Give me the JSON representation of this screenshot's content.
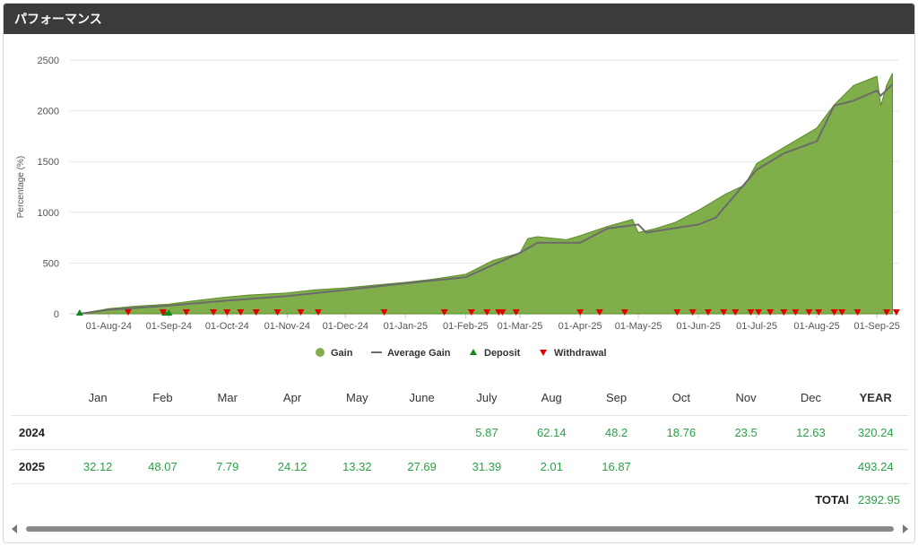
{
  "header": {
    "title": "パフォーマンス"
  },
  "chart_data": {
    "type": "area",
    "ylabel": "Percentage (%)",
    "ylim": [
      0,
      2500
    ],
    "yticks": [
      0,
      500,
      1000,
      1500,
      2000,
      2500
    ],
    "xlim": [
      "2024-07-12",
      "2025-09-12"
    ],
    "xticks": [
      "01-Aug-24",
      "01-Sep-24",
      "01-Oct-24",
      "01-Nov-24",
      "01-Dec-24",
      "01-Jan-25",
      "01-Feb-25",
      "01-Mar-25",
      "01-Apr-25",
      "01-May-25",
      "01-Jun-25",
      "01-Jul-25",
      "01-Aug-25",
      "01-Sep-25"
    ],
    "legend_position": "bottom-center",
    "grid": true,
    "colors": {
      "gain": "#7fae4b",
      "gain_line": "#5d8a2a",
      "average": "#6b6b6b",
      "deposit": "#12891a",
      "withdrawal": "#e10000"
    },
    "series": [
      {
        "name": "Gain",
        "x": [
          "2024-07-17",
          "2024-08-01",
          "2024-08-15",
          "2024-09-01",
          "2024-09-15",
          "2024-10-01",
          "2024-10-12",
          "2024-11-01",
          "2024-11-15",
          "2024-12-01",
          "2024-12-15",
          "2025-01-01",
          "2025-01-15",
          "2025-02-01",
          "2025-02-15",
          "2025-03-01",
          "2025-03-05",
          "2025-03-10",
          "2025-03-25",
          "2025-04-01",
          "2025-04-15",
          "2025-04-28",
          "2025-05-01",
          "2025-05-10",
          "2025-05-20",
          "2025-06-01",
          "2025-06-15",
          "2025-06-25",
          "2025-07-01",
          "2025-07-15",
          "2025-08-01",
          "2025-08-10",
          "2025-08-20",
          "2025-09-01",
          "2025-09-03",
          "2025-09-06",
          "2025-09-09"
        ],
        "values": [
          0,
          50,
          75,
          95,
          130,
          165,
          185,
          205,
          235,
          255,
          280,
          310,
          340,
          390,
          525,
          600,
          740,
          760,
          730,
          770,
          860,
          930,
          800,
          840,
          900,
          1020,
          1180,
          1270,
          1480,
          1640,
          1830,
          2060,
          2250,
          2340,
          2050,
          2250,
          2370
        ]
      },
      {
        "name": "Average Gain",
        "x": [
          "2024-07-17",
          "2024-08-01",
          "2024-09-01",
          "2024-10-01",
          "2024-11-01",
          "2024-12-01",
          "2025-01-01",
          "2025-02-01",
          "2025-03-01",
          "2025-03-10",
          "2025-04-01",
          "2025-04-15",
          "2025-05-01",
          "2025-05-05",
          "2025-06-01",
          "2025-06-10",
          "2025-07-01",
          "2025-07-15",
          "2025-08-01",
          "2025-08-10",
          "2025-08-20",
          "2025-09-01",
          "2025-09-03",
          "2025-09-09"
        ],
        "values": [
          0,
          40,
          80,
          130,
          175,
          235,
          300,
          360,
          600,
          700,
          700,
          840,
          880,
          800,
          880,
          950,
          1420,
          1580,
          1700,
          2050,
          2100,
          2200,
          2150,
          2260
        ]
      }
    ],
    "deposits": [
      "2024-07-17",
      "2024-08-30",
      "2024-09-01"
    ],
    "withdrawals": [
      "2024-08-11",
      "2024-08-29",
      "2024-09-10",
      "2024-09-24",
      "2024-10-01",
      "2024-10-08",
      "2024-10-16",
      "2024-10-27",
      "2024-11-08",
      "2024-11-17",
      "2024-12-21",
      "2025-01-21",
      "2025-02-04",
      "2025-02-12",
      "2025-02-18",
      "2025-02-20",
      "2025-02-27",
      "2025-04-01",
      "2025-04-11",
      "2025-04-24",
      "2025-05-21",
      "2025-05-29",
      "2025-06-06",
      "2025-06-14",
      "2025-06-20",
      "2025-06-28",
      "2025-07-02",
      "2025-07-08",
      "2025-07-15",
      "2025-07-21",
      "2025-07-28",
      "2025-08-02",
      "2025-08-10",
      "2025-08-14",
      "2025-08-22",
      "2025-09-06",
      "2025-09-11"
    ],
    "legend": [
      {
        "name": "Gain",
        "marker": "circle"
      },
      {
        "name": "Average Gain",
        "marker": "line"
      },
      {
        "name": "Deposit",
        "marker": "triangle-up"
      },
      {
        "name": "Withdrawal",
        "marker": "triangle-down"
      }
    ]
  },
  "table": {
    "months": [
      "Jan",
      "Feb",
      "Mar",
      "Apr",
      "May",
      "June",
      "July",
      "Aug",
      "Sep",
      "Oct",
      "Nov",
      "Dec"
    ],
    "year_label": "YEAR",
    "rows": [
      {
        "year": "2024",
        "values": [
          "",
          "",
          "",
          "",
          "",
          "",
          "5.87",
          "62.14",
          "48.2",
          "18.76",
          "23.5",
          "12.63"
        ],
        "total": "320.24"
      },
      {
        "year": "2025",
        "values": [
          "32.12",
          "48.07",
          "7.79",
          "24.12",
          "13.32",
          "27.69",
          "31.39",
          "2.01",
          "16.87",
          "",
          "",
          ""
        ],
        "total": "493.24"
      }
    ],
    "total_label": "TOTAl",
    "total_value": "2392.95"
  }
}
